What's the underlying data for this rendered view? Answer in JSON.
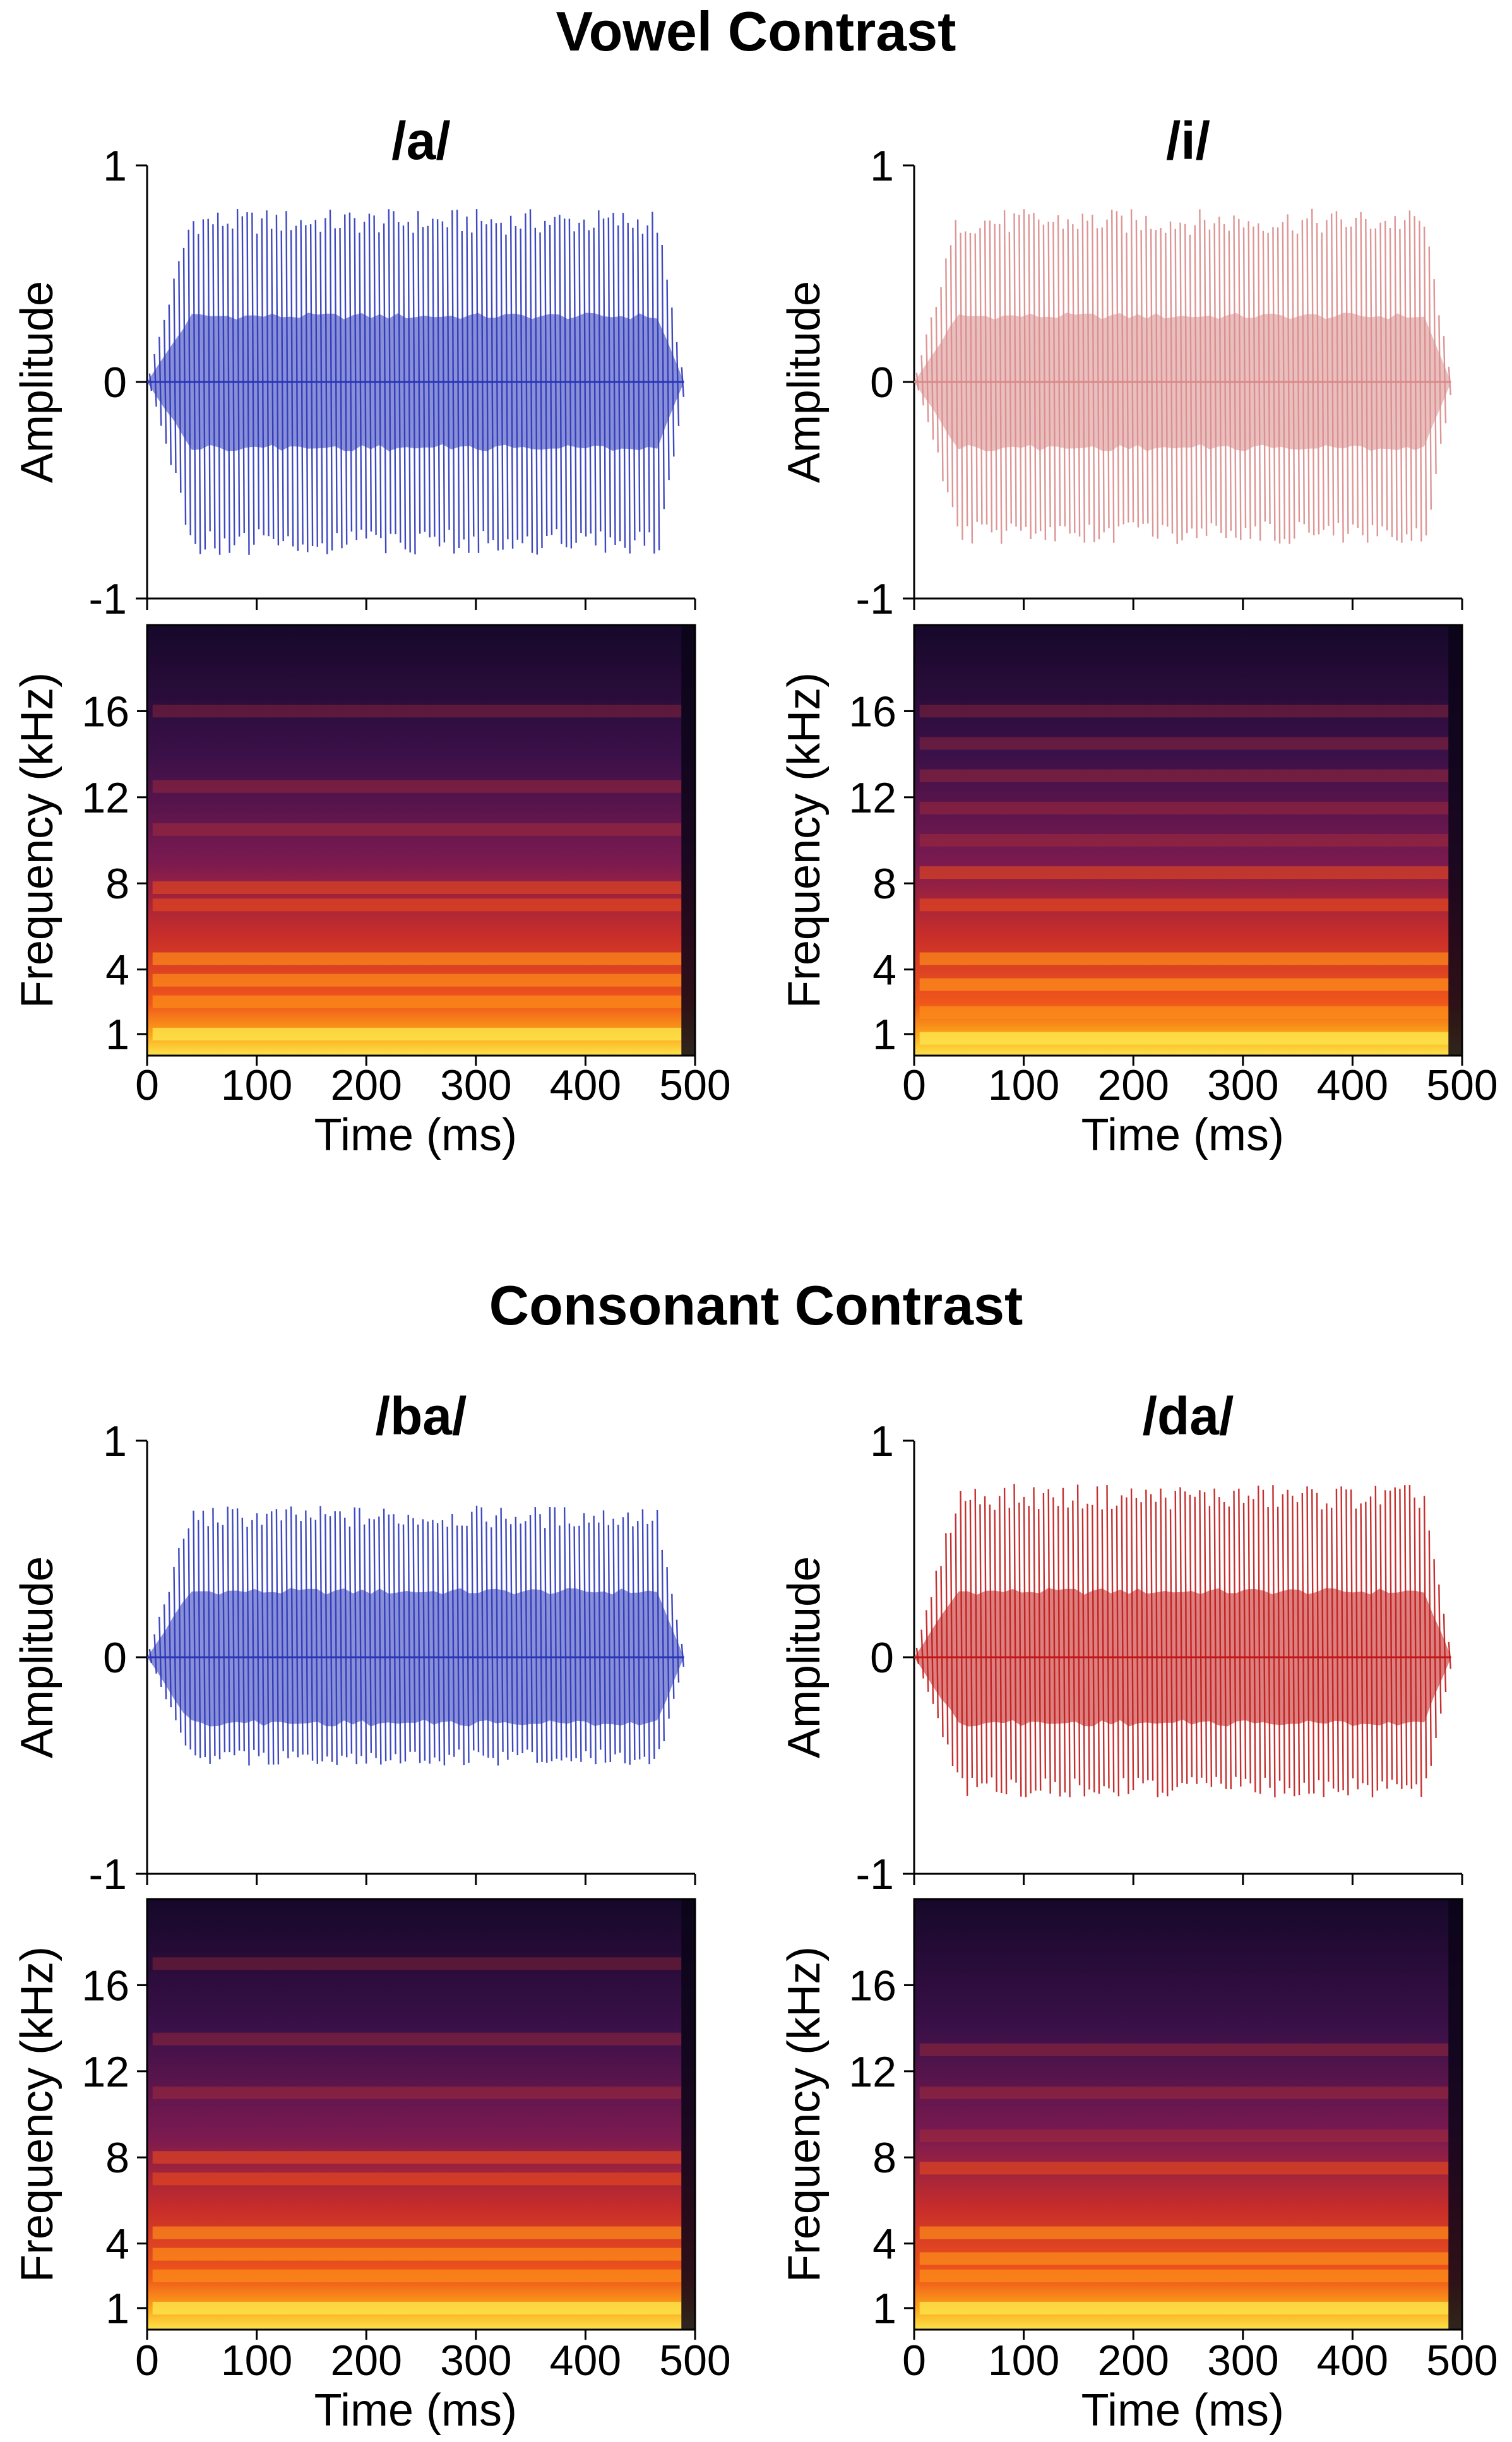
{
  "figure": {
    "sections": [
      {
        "title": "Vowel Contrast"
      },
      {
        "title": "Consonant Contrast"
      }
    ]
  },
  "colors": {
    "blue_wave": "#2a35b8",
    "red_wave": "#c01818",
    "pink_wave": "#d98a8a",
    "spectrogram_scale": [
      "#0b0517",
      "#2a0d3e",
      "#5a1458",
      "#9a1f48",
      "#d8391c",
      "#f46b12",
      "#fba41a",
      "#fde34a"
    ]
  },
  "chart_data": [
    {
      "type": "line",
      "title": "/a/",
      "xlabel": "",
      "ylabel": "Amplitude",
      "xlim": [
        0,
        500
      ],
      "ylim": [
        -1,
        1
      ],
      "yticks": [
        "1",
        "0",
        "-1"
      ],
      "series": [
        {
          "color_key": "blue_wave",
          "envelope_peak": 0.8,
          "envelope_trough": -0.8,
          "duration_ms": 490
        }
      ]
    },
    {
      "type": "heatmap",
      "title": "",
      "xlabel": "Time (ms)",
      "ylabel": "Frequency (kHz)",
      "xlim": [
        0,
        500
      ],
      "ylim": [
        0,
        20
      ],
      "xticks": [
        "0",
        "100",
        "200",
        "300",
        "400",
        "500"
      ],
      "yticks": [
        "16",
        "12",
        "8",
        "4",
        "1"
      ],
      "energy_bands_khz": [
        1,
        2.5,
        3.5,
        4.5,
        7,
        7.8,
        10.5,
        12.5,
        16
      ]
    },
    {
      "type": "line",
      "title": "/i/",
      "xlabel": "",
      "ylabel": "Amplitude",
      "xlim": [
        0,
        500
      ],
      "ylim": [
        -1,
        1
      ],
      "yticks": [
        "1",
        "0",
        "-1"
      ],
      "series": [
        {
          "color_key": "pink_wave",
          "envelope_peak": 0.8,
          "envelope_trough": -0.75,
          "duration_ms": 490
        }
      ]
    },
    {
      "type": "heatmap",
      "title": "",
      "xlabel": "Time (ms)",
      "ylabel": "Frequency (kHz)",
      "xlim": [
        0,
        500
      ],
      "ylim": [
        0,
        20
      ],
      "xticks": [
        "0",
        "100",
        "200",
        "300",
        "400",
        "500"
      ],
      "yticks": [
        "16",
        "12",
        "8",
        "4",
        "1"
      ],
      "energy_bands_khz": [
        0.8,
        2,
        3.3,
        4.5,
        7,
        8.5,
        10,
        11.5,
        13,
        14.5,
        16
      ]
    },
    {
      "type": "line",
      "title": "/ba/",
      "xlabel": "",
      "ylabel": "Amplitude",
      "xlim": [
        0,
        500
      ],
      "ylim": [
        -1,
        1
      ],
      "yticks": [
        "1",
        "0",
        "-1"
      ],
      "series": [
        {
          "color_key": "blue_wave",
          "envelope_peak": 0.7,
          "envelope_trough": -0.5,
          "duration_ms": 490
        }
      ]
    },
    {
      "type": "heatmap",
      "title": "",
      "xlabel": "Time (ms)",
      "ylabel": "Frequency (kHz)",
      "xlim": [
        0,
        500
      ],
      "ylim": [
        0,
        20
      ],
      "xticks": [
        "0",
        "100",
        "200",
        "300",
        "400",
        "500"
      ],
      "yticks": [
        "16",
        "12",
        "8",
        "4",
        "1"
      ],
      "energy_bands_khz": [
        1,
        2.5,
        3.5,
        4.5,
        7,
        8,
        11,
        13.5,
        17
      ]
    },
    {
      "type": "line",
      "title": "/da/",
      "xlabel": "",
      "ylabel": "Amplitude",
      "xlim": [
        0,
        500
      ],
      "ylim": [
        -1,
        1
      ],
      "yticks": [
        "1",
        "0",
        "-1"
      ],
      "series": [
        {
          "color_key": "red_wave",
          "envelope_peak": 0.8,
          "envelope_trough": -0.65,
          "duration_ms": 490
        }
      ]
    },
    {
      "type": "heatmap",
      "title": "",
      "xlabel": "Time (ms)",
      "ylabel": "Frequency (kHz)",
      "xlim": [
        0,
        500
      ],
      "ylim": [
        0,
        20
      ],
      "xticks": [
        "0",
        "100",
        "200",
        "300",
        "400",
        "500"
      ],
      "yticks": [
        "16",
        "12",
        "8",
        "4",
        "1"
      ],
      "energy_bands_khz": [
        1,
        2.5,
        3.3,
        4.5,
        7.5,
        9,
        11,
        13
      ]
    }
  ]
}
